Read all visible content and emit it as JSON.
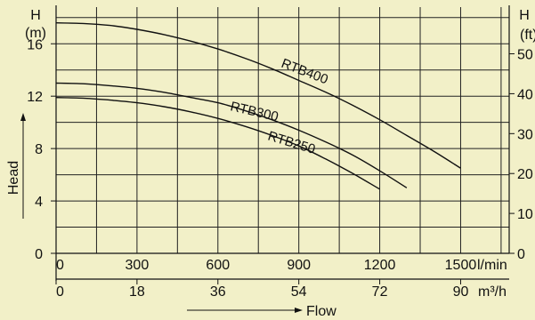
{
  "chart_data": {
    "type": "line",
    "y_axis_left": {
      "symbol": "H",
      "unit": "(m)",
      "ticks": [
        0,
        4,
        8,
        12,
        16
      ],
      "range": [
        0,
        18.8
      ]
    },
    "y_axis_right": {
      "symbol": "H",
      "unit": "(ft)",
      "ticks": [
        0,
        10,
        20,
        30,
        40,
        50
      ],
      "range": [
        0,
        61.7
      ]
    },
    "x_axis_primary": {
      "unit": "l/min",
      "ticks": [
        0,
        300,
        600,
        900,
        1200,
        1500
      ],
      "range": [
        0,
        1680
      ]
    },
    "x_axis_secondary": {
      "unit": "m³/h",
      "ticks": [
        0,
        18,
        36,
        54,
        72,
        90
      ]
    },
    "ylabel": "Head",
    "xlabel": "Flow",
    "grid": true,
    "series": [
      {
        "name": "RTB400",
        "x": [
          0,
          100,
          200,
          300,
          400,
          500,
          600,
          700,
          800,
          900,
          1000,
          1100,
          1200,
          1300,
          1400,
          1500
        ],
        "y": [
          17.6,
          17.55,
          17.4,
          17.1,
          16.7,
          16.2,
          15.6,
          14.9,
          14.1,
          13.2,
          12.3,
          11.3,
          10.2,
          9.0,
          7.8,
          6.5
        ]
      },
      {
        "name": "RTB300",
        "x": [
          0,
          100,
          200,
          300,
          400,
          500,
          600,
          700,
          800,
          900,
          1000,
          1100,
          1200,
          1300
        ],
        "y": [
          13.0,
          12.95,
          12.8,
          12.6,
          12.3,
          11.9,
          11.5,
          10.9,
          10.2,
          9.4,
          8.5,
          7.5,
          6.3,
          5.0
        ]
      },
      {
        "name": "RTB250",
        "x": [
          0,
          100,
          200,
          300,
          400,
          500,
          600,
          700,
          800,
          900,
          1000,
          1100,
          1200
        ],
        "y": [
          11.9,
          11.85,
          11.7,
          11.5,
          11.2,
          10.8,
          10.3,
          9.7,
          9.0,
          8.2,
          7.2,
          6.1,
          4.9
        ]
      }
    ]
  }
}
